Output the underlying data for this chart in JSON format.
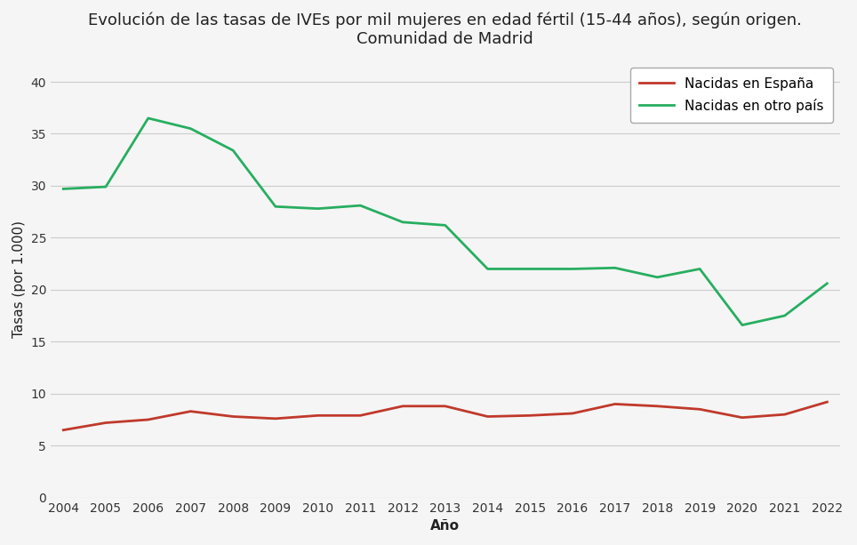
{
  "title_line1": "Evolución de las tasas de IVEs por mil mujeres en edad fértil (15-44 años), según origen.",
  "title_line2": "Comunidad de Madrid",
  "xlabel": "Año",
  "ylabel": "Tasas (por 1.000)",
  "years": [
    2004,
    2005,
    2006,
    2007,
    2008,
    2009,
    2010,
    2011,
    2012,
    2013,
    2014,
    2015,
    2016,
    2017,
    2018,
    2019,
    2020,
    2021,
    2022
  ],
  "spain": [
    6.5,
    7.2,
    7.5,
    8.3,
    7.8,
    7.6,
    7.9,
    7.9,
    8.8,
    8.8,
    7.8,
    7.9,
    8.1,
    9.0,
    8.8,
    8.5,
    7.7,
    8.0,
    9.2
  ],
  "other": [
    29.7,
    29.9,
    36.5,
    35.5,
    33.4,
    28.0,
    27.8,
    28.1,
    26.5,
    26.2,
    22.0,
    22.0,
    22.0,
    22.1,
    21.2,
    22.0,
    16.6,
    17.5,
    20.6
  ],
  "spain_color": "#C0392B",
  "other_color": "#27AE60",
  "spain_label": "Nacidas en España",
  "other_label": "Nacidas en otro país",
  "ylim": [
    0,
    42
  ],
  "yticks": [
    0,
    5,
    10,
    15,
    20,
    25,
    30,
    35,
    40
  ],
  "background_color": "#f5f5f5",
  "plot_bg_color": "#f5f5f5",
  "grid_color": "#cccccc",
  "title_fontsize": 13,
  "axis_label_fontsize": 11,
  "tick_fontsize": 10,
  "legend_fontsize": 11,
  "line_width": 2.0
}
